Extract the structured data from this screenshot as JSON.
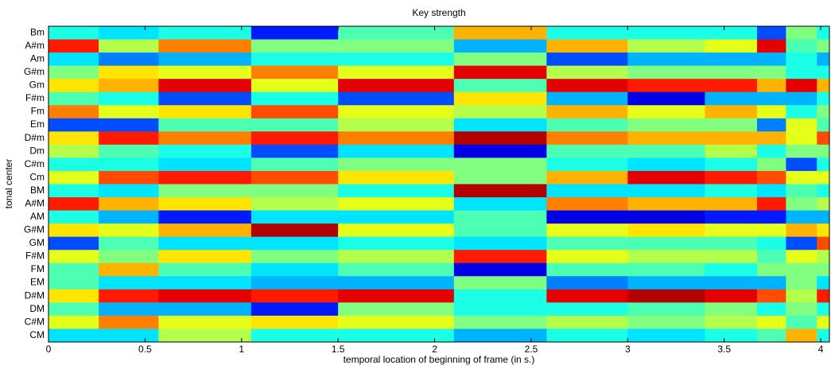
{
  "chart_data": {
    "type": "heatmap",
    "title": "Key strength",
    "x_label": "temporal location of beginning of frame (in s.)",
    "y_label": "tonal center",
    "colormap": "jet",
    "bins": [
      0,
      0.26,
      0.57,
      1.05,
      1.5,
      2.1,
      2.58,
      3.0,
      3.4,
      3.67,
      3.82,
      3.98,
      4.045
    ],
    "categories": [
      "Bm",
      "A#m",
      "Am",
      "G#m",
      "Gm",
      "F#m",
      "Fm",
      "Em",
      "D#m",
      "Dm",
      "C#m",
      "Cm",
      "BM",
      "A#M",
      "AM",
      "G#M",
      "GM",
      "F#M",
      "FM",
      "EM",
      "D#M",
      "DM",
      "C#M",
      "CM"
    ],
    "values": [
      [
        0.4,
        0.35,
        0.4,
        0.15,
        0.45,
        0.7,
        0.4,
        0.4,
        0.4,
        0.2,
        0.5,
        0.4
      ],
      [
        0.85,
        0.55,
        0.75,
        0.5,
        0.5,
        0.3,
        0.7,
        0.55,
        0.6,
        0.9,
        0.45,
        0.5
      ],
      [
        0.35,
        0.25,
        0.3,
        0.4,
        0.4,
        0.5,
        0.2,
        0.3,
        0.3,
        0.3,
        0.4,
        0.3
      ],
      [
        0.5,
        0.65,
        0.6,
        0.75,
        0.6,
        0.9,
        0.55,
        0.5,
        0.5,
        0.5,
        0.4,
        0.4
      ],
      [
        0.65,
        0.7,
        0.9,
        0.6,
        0.9,
        0.45,
        0.9,
        0.85,
        0.85,
        0.7,
        0.9,
        0.7
      ],
      [
        0.45,
        0.4,
        0.2,
        0.4,
        0.2,
        0.65,
        0.3,
        0.1,
        0.3,
        0.3,
        0.3,
        0.4
      ],
      [
        0.75,
        0.6,
        0.65,
        0.8,
        0.6,
        0.55,
        0.7,
        0.6,
        0.7,
        0.6,
        0.4,
        0.5
      ],
      [
        0.2,
        0.2,
        0.45,
        0.45,
        0.55,
        0.35,
        0.45,
        0.5,
        0.5,
        0.25,
        0.6,
        0.45
      ],
      [
        0.65,
        0.85,
        0.75,
        0.85,
        0.75,
        0.95,
        0.75,
        0.7,
        0.7,
        0.7,
        0.6,
        0.8
      ],
      [
        0.55,
        0.45,
        0.4,
        0.2,
        0.35,
        0.1,
        0.45,
        0.45,
        0.55,
        0.4,
        0.5,
        0.5
      ],
      [
        0.4,
        0.4,
        0.35,
        0.45,
        0.5,
        0.5,
        0.4,
        0.35,
        0.4,
        0.5,
        0.2,
        0.4
      ],
      [
        0.6,
        0.8,
        0.85,
        0.8,
        0.65,
        0.5,
        0.7,
        0.9,
        0.85,
        0.8,
        0.6,
        0.6
      ],
      [
        0.4,
        0.35,
        0.5,
        0.5,
        0.4,
        0.95,
        0.35,
        0.35,
        0.4,
        0.35,
        0.45,
        0.4
      ],
      [
        0.85,
        0.7,
        0.65,
        0.55,
        0.6,
        0.35,
        0.75,
        0.7,
        0.7,
        0.85,
        0.5,
        0.55
      ],
      [
        0.4,
        0.3,
        0.15,
        0.35,
        0.35,
        0.45,
        0.1,
        0.1,
        0.15,
        0.15,
        0.3,
        0.3
      ],
      [
        0.65,
        0.6,
        0.7,
        0.95,
        0.6,
        0.45,
        0.6,
        0.65,
        0.6,
        0.6,
        0.7,
        0.65
      ],
      [
        0.2,
        0.45,
        0.35,
        0.35,
        0.4,
        0.35,
        0.45,
        0.45,
        0.45,
        0.4,
        0.2,
        0.8
      ],
      [
        0.6,
        0.5,
        0.65,
        0.5,
        0.55,
        0.85,
        0.6,
        0.55,
        0.55,
        0.45,
        0.6,
        0.55
      ],
      [
        0.45,
        0.7,
        0.45,
        0.35,
        0.45,
        0.1,
        0.45,
        0.45,
        0.4,
        0.5,
        0.5,
        0.5
      ],
      [
        0.45,
        0.35,
        0.35,
        0.3,
        0.3,
        0.5,
        0.25,
        0.3,
        0.3,
        0.3,
        0.5,
        0.35
      ],
      [
        0.65,
        0.85,
        0.9,
        0.85,
        0.9,
        0.4,
        0.9,
        0.95,
        0.9,
        0.8,
        0.55,
        0.85
      ],
      [
        0.45,
        0.3,
        0.3,
        0.15,
        0.5,
        0.4,
        0.4,
        0.45,
        0.5,
        0.4,
        0.5,
        0.4
      ],
      [
        0.6,
        0.75,
        0.6,
        0.65,
        0.6,
        0.5,
        0.55,
        0.5,
        0.55,
        0.6,
        0.45,
        0.6
      ],
      [
        0.35,
        0.35,
        0.55,
        0.4,
        0.4,
        0.3,
        0.4,
        0.35,
        0.4,
        0.45,
        0.7,
        0.4
      ]
    ],
    "xlim": [
      0,
      4.045
    ],
    "xticks": [
      0,
      0.5,
      1,
      1.5,
      2,
      2.5,
      3,
      3.5,
      4
    ]
  }
}
